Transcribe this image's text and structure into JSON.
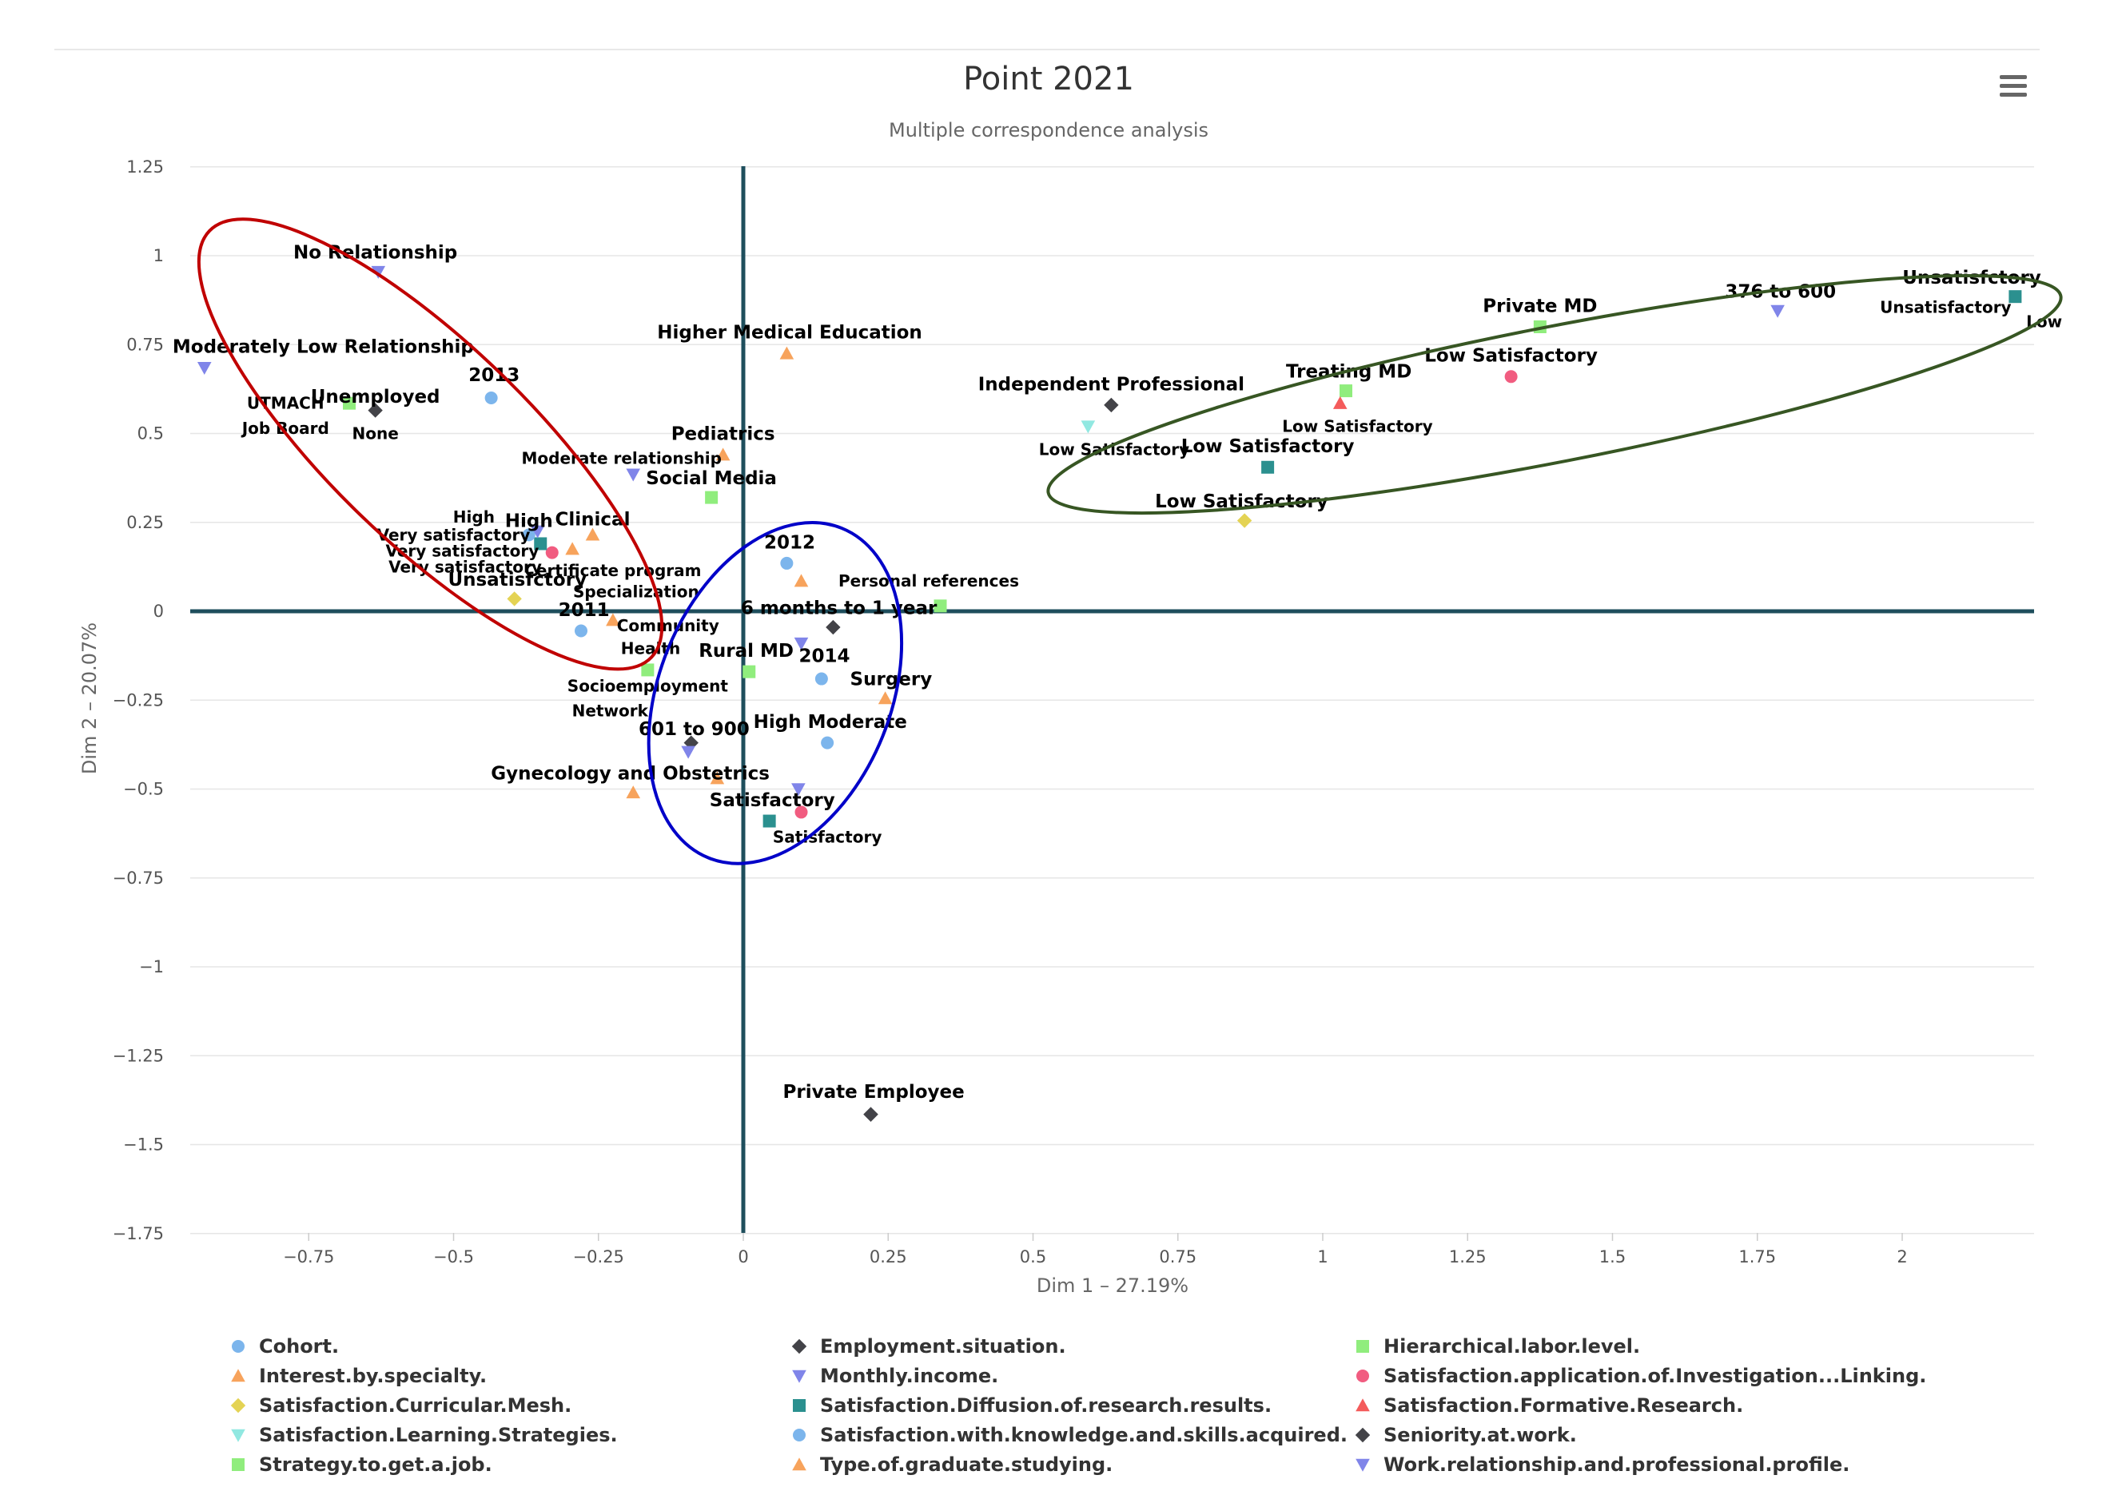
{
  "colors": {
    "cohort": "#7cb5ec",
    "employment": "#434348",
    "hierarchical": "#90ed7d",
    "interest": "#f7a35c",
    "income": "#8085e9",
    "applicationInvestigation": "#f15c80",
    "curricular": "#e4d354",
    "diffusion": "#2b908f",
    "formative": "#f45b5b",
    "learning": "#91e8e1",
    "zeroLine": "#1e4e5c",
    "redEllipse": "#c00000",
    "blueEllipse": "#0000c8",
    "greenEllipse": "#375623"
  },
  "menu": {
    "icon": "hamburger-menu-icon"
  },
  "chart_data": {
    "type": "scatter",
    "title": "Point 2021",
    "subtitle": "Multiple correspondence analysis",
    "xlabel": "Dim 1 – 27.19%",
    "ylabel": "Dim 2 – 20.07%",
    "xlim": [
      -0.95,
      2.25
    ],
    "ylim": [
      -1.75,
      1.25
    ],
    "xticks": [
      {
        "v": -0.75,
        "label": "−0.75"
      },
      {
        "v": -0.5,
        "label": "−0.5"
      },
      {
        "v": -0.25,
        "label": "−0.25"
      },
      {
        "v": 0,
        "label": "0"
      },
      {
        "v": 0.25,
        "label": "0.25"
      },
      {
        "v": 0.5,
        "label": "0.5"
      },
      {
        "v": 0.75,
        "label": "0.75"
      },
      {
        "v": 1,
        "label": "1"
      },
      {
        "v": 1.25,
        "label": "1.25"
      },
      {
        "v": 1.5,
        "label": "1.5"
      },
      {
        "v": 1.75,
        "label": "1.75"
      },
      {
        "v": 2,
        "label": "2"
      }
    ],
    "yticks": [
      {
        "v": 1.25,
        "label": "1.25"
      },
      {
        "v": 1,
        "label": "1"
      },
      {
        "v": 0.75,
        "label": "0.75"
      },
      {
        "v": 0.5,
        "label": "0.5"
      },
      {
        "v": 0.25,
        "label": "0.25"
      },
      {
        "v": 0,
        "label": "0"
      },
      {
        "v": -0.25,
        "label": "−0.25"
      },
      {
        "v": -0.5,
        "label": "−0.5"
      },
      {
        "v": -0.75,
        "label": "−0.75"
      },
      {
        "v": -1,
        "label": "−1"
      },
      {
        "v": -1.25,
        "label": "−1.25"
      },
      {
        "v": -1.5,
        "label": "−1.5"
      },
      {
        "v": -1.75,
        "label": "−1.75"
      }
    ],
    "legend_position": "bottom",
    "series": [
      {
        "name": "Cohort.",
        "marker": "circle",
        "colorKey": "cohort",
        "points": [
          {
            "x": -0.435,
            "y": 0.6
          },
          {
            "x": -0.28,
            "y": -0.055
          },
          {
            "x": 0.075,
            "y": 0.135
          },
          {
            "x": 0.135,
            "y": -0.19
          }
        ]
      },
      {
        "name": "Employment.situation.",
        "marker": "diamond",
        "colorKey": "employment",
        "points": [
          {
            "x": -0.635,
            "y": 0.565
          },
          {
            "x": 0.635,
            "y": 0.58
          },
          {
            "x": 0.155,
            "y": -0.045
          },
          {
            "x": -0.09,
            "y": -0.37
          },
          {
            "x": 0.22,
            "y": -1.415
          }
        ]
      },
      {
        "name": "Hierarchical.labor.level.",
        "marker": "square",
        "colorKey": "hierarchical",
        "points": [
          {
            "x": 1.375,
            "y": 0.8
          },
          {
            "x": 1.04,
            "y": 0.62
          },
          {
            "x": 0.01,
            "y": -0.17
          }
        ]
      },
      {
        "name": "Interest.by.specialty.",
        "marker": "triangle",
        "colorKey": "interest",
        "points": [
          {
            "x": 0.075,
            "y": 0.725
          },
          {
            "x": -0.035,
            "y": 0.44
          },
          {
            "x": -0.26,
            "y": 0.215
          },
          {
            "x": -0.295,
            "y": 0.175
          },
          {
            "x": 0.245,
            "y": -0.245
          },
          {
            "x": -0.19,
            "y": -0.51
          }
        ]
      },
      {
        "name": "Monthly.income.",
        "marker": "triangle-down",
        "colorKey": "income",
        "points": [
          {
            "x": 1.785,
            "y": 0.845
          },
          {
            "x": -0.095,
            "y": -0.395
          },
          {
            "x": 0.095,
            "y": -0.5
          }
        ]
      },
      {
        "name": "Satisfaction.application.of.Investigation...Linking.",
        "marker": "circle",
        "colorKey": "applicationInvestigation",
        "points": [
          {
            "x": 1.325,
            "y": 0.66
          },
          {
            "x": -0.33,
            "y": 0.165
          },
          {
            "x": 0.1,
            "y": -0.565
          }
        ]
      },
      {
        "name": "Satisfaction.Curricular.Mesh.",
        "marker": "diamond",
        "colorKey": "curricular",
        "points": [
          {
            "x": 0.865,
            "y": 0.255
          },
          {
            "x": -0.395,
            "y": 0.035
          }
        ]
      },
      {
        "name": "Satisfaction.Diffusion.of.research.results.",
        "marker": "square",
        "colorKey": "diffusion",
        "points": [
          {
            "x": 2.195,
            "y": 0.885
          },
          {
            "x": 0.905,
            "y": 0.405
          },
          {
            "x": -0.35,
            "y": 0.19
          },
          {
            "x": 0.045,
            "y": -0.59
          }
        ]
      },
      {
        "name": "Satisfaction.Formative.Research.",
        "marker": "triangle",
        "colorKey": "formative",
        "points": [
          {
            "x": 1.03,
            "y": 0.585
          }
        ]
      },
      {
        "name": "Satisfaction.Learning.Strategies.",
        "marker": "triangle-down",
        "colorKey": "learning",
        "points": [
          {
            "x": 0.595,
            "y": 0.52
          }
        ]
      },
      {
        "name": "Satisfaction.with.knowledge.and.skills.acquired.",
        "marker": "circle",
        "colorKey": "cohort",
        "points": [
          {
            "x": -0.37,
            "y": 0.215
          },
          {
            "x": 0.145,
            "y": -0.37
          }
        ]
      },
      {
        "name": "Seniority.at.work.",
        "marker": "diamond",
        "colorKey": "employment",
        "points": [
          {
            "x": 0.22,
            "y": -1.415
          }
        ]
      },
      {
        "name": "Strategy.to.get.a.job.",
        "marker": "square",
        "colorKey": "hierarchical",
        "points": [
          {
            "x": -0.68,
            "y": 0.585
          },
          {
            "x": -0.055,
            "y": 0.32
          },
          {
            "x": 0.34,
            "y": 0.015
          },
          {
            "x": -0.165,
            "y": -0.165
          }
        ]
      },
      {
        "name": "Type.of.graduate.studying.",
        "marker": "triangle",
        "colorKey": "interest",
        "points": [
          {
            "x": 0.1,
            "y": 0.085
          },
          {
            "x": -0.225,
            "y": -0.025
          },
          {
            "x": -0.045,
            "y": -0.47
          }
        ]
      },
      {
        "name": "Work.relationship.and.professional.profile.",
        "marker": "triangle-down",
        "colorKey": "income",
        "points": [
          {
            "x": -0.63,
            "y": 0.955
          },
          {
            "x": -0.93,
            "y": 0.685
          },
          {
            "x": -0.19,
            "y": 0.385
          },
          {
            "x": -0.355,
            "y": 0.225
          },
          {
            "x": 0.1,
            "y": -0.09
          }
        ]
      }
    ],
    "annotations": [
      {
        "text": "No Relationship",
        "x": -0.635,
        "y": 1.01,
        "size": "lg"
      },
      {
        "text": "Moderately Low Relationship",
        "x": -0.725,
        "y": 0.745,
        "size": "lg"
      },
      {
        "text": "2013",
        "x": -0.43,
        "y": 0.665,
        "size": "lg"
      },
      {
        "text": "Unemployed",
        "x": -0.635,
        "y": 0.605,
        "size": "lg"
      },
      {
        "text": "UTMACH",
        "x": -0.79,
        "y": 0.585,
        "size": "md"
      },
      {
        "text": "Job Board",
        "x": -0.79,
        "y": 0.515,
        "size": "md"
      },
      {
        "text": "None",
        "x": -0.635,
        "y": 0.5,
        "size": "md"
      },
      {
        "text": "Higher Medical Education",
        "x": 0.08,
        "y": 0.785,
        "size": "lg"
      },
      {
        "text": "Pediatrics",
        "x": -0.035,
        "y": 0.5,
        "size": "lg"
      },
      {
        "text": "Moderate relationship",
        "x": -0.21,
        "y": 0.43,
        "size": "md"
      },
      {
        "text": "Social Media",
        "x": -0.055,
        "y": 0.375,
        "size": "lg"
      },
      {
        "text": "High",
        "x": -0.465,
        "y": 0.265,
        "size": "md"
      },
      {
        "text": "High",
        "x": -0.37,
        "y": 0.255,
        "size": "lg"
      },
      {
        "text": "Clinical",
        "x": -0.26,
        "y": 0.26,
        "size": "lg"
      },
      {
        "text": "Very satisfactory",
        "x": -0.5,
        "y": 0.215,
        "size": "md"
      },
      {
        "text": "Very satisfactory",
        "x": -0.485,
        "y": 0.17,
        "size": "md"
      },
      {
        "text": "Very satisfactory",
        "x": -0.48,
        "y": 0.125,
        "size": "md"
      },
      {
        "text": "Certificate program",
        "x": -0.225,
        "y": 0.115,
        "size": "md"
      },
      {
        "text": "Unsatisfctory",
        "x": -0.39,
        "y": 0.09,
        "size": "lg"
      },
      {
        "text": "Specialization",
        "x": -0.185,
        "y": 0.055,
        "size": "md"
      },
      {
        "text": "2011",
        "x": -0.275,
        "y": 0.005,
        "size": "lg"
      },
      {
        "text": "2012",
        "x": 0.08,
        "y": 0.195,
        "size": "lg"
      },
      {
        "text": "Personal references",
        "x": 0.32,
        "y": 0.085,
        "size": "md"
      },
      {
        "text": "6 months to 1 year",
        "x": 0.165,
        "y": 0.01,
        "size": "lg"
      },
      {
        "text": "Community",
        "x": -0.13,
        "y": -0.04,
        "size": "md"
      },
      {
        "text": "Health",
        "x": -0.16,
        "y": -0.105,
        "size": "md"
      },
      {
        "text": "Rural MD",
        "x": 0.005,
        "y": -0.11,
        "size": "lg"
      },
      {
        "text": "2014",
        "x": 0.14,
        "y": -0.125,
        "size": "lg"
      },
      {
        "text": "Surgery",
        "x": 0.255,
        "y": -0.19,
        "size": "lg"
      },
      {
        "text": "Socioemployment",
        "x": -0.165,
        "y": -0.21,
        "size": "md"
      },
      {
        "text": "Network",
        "x": -0.23,
        "y": -0.28,
        "size": "md"
      },
      {
        "text": "601 to 900",
        "x": -0.085,
        "y": -0.33,
        "size": "lg"
      },
      {
        "text": "High Moderate",
        "x": 0.15,
        "y": -0.31,
        "size": "lg"
      },
      {
        "text": "Gynecology and Obstetrics",
        "x": -0.195,
        "y": -0.455,
        "size": "lg"
      },
      {
        "text": "Satisfactory",
        "x": 0.05,
        "y": -0.53,
        "size": "lg"
      },
      {
        "text": "Satisfactory",
        "x": 0.145,
        "y": -0.635,
        "size": "md"
      },
      {
        "text": "Private Employee",
        "x": 0.225,
        "y": -1.35,
        "size": "lg"
      },
      {
        "text": "Independent Professional",
        "x": 0.635,
        "y": 0.64,
        "size": "lg"
      },
      {
        "text": "Treating MD",
        "x": 1.045,
        "y": 0.675,
        "size": "lg"
      },
      {
        "text": "Private MD",
        "x": 1.375,
        "y": 0.86,
        "size": "lg"
      },
      {
        "text": "Low Satisfactory",
        "x": 1.325,
        "y": 0.72,
        "size": "lg"
      },
      {
        "text": "376 to 600",
        "x": 1.79,
        "y": 0.9,
        "size": "lg"
      },
      {
        "text": "Unsatisfctory",
        "x": 2.12,
        "y": 0.94,
        "size": "lg"
      },
      {
        "text": "Unsatisfactory",
        "x": 2.075,
        "y": 0.855,
        "size": "md"
      },
      {
        "text": "Low",
        "x": 2.245,
        "y": 0.815,
        "size": "md"
      },
      {
        "text": "Low Satisfactory",
        "x": 1.06,
        "y": 0.52,
        "size": "md"
      },
      {
        "text": "Low Satisfactory",
        "x": 0.64,
        "y": 0.455,
        "size": "md"
      },
      {
        "text": "Low Satisfactory",
        "x": 0.905,
        "y": 0.465,
        "size": "lg"
      },
      {
        "text": "Low Satisfactory",
        "x": 0.86,
        "y": 0.31,
        "size": "lg"
      }
    ],
    "legend": [
      {
        "label": "Cohort.",
        "marker": "circle",
        "colorKey": "cohort"
      },
      {
        "label": "Employment.situation.",
        "marker": "diamond",
        "colorKey": "employment"
      },
      {
        "label": "Hierarchical.labor.level.",
        "marker": "square",
        "colorKey": "hierarchical"
      },
      {
        "label": "Interest.by.specialty.",
        "marker": "triangle",
        "colorKey": "interest"
      },
      {
        "label": "Monthly.income.",
        "marker": "triangle-down",
        "colorKey": "income"
      },
      {
        "label": "Satisfaction.application.of.Investigation...Linking.",
        "marker": "circle",
        "colorKey": "applicationInvestigation"
      },
      {
        "label": "Satisfaction.Curricular.Mesh.",
        "marker": "diamond",
        "colorKey": "curricular"
      },
      {
        "label": "Satisfaction.Diffusion.of.research.results.",
        "marker": "square",
        "colorKey": "diffusion"
      },
      {
        "label": "Satisfaction.Formative.Research.",
        "marker": "triangle",
        "colorKey": "formative"
      },
      {
        "label": "Satisfaction.Learning.Strategies.",
        "marker": "triangle-down",
        "colorKey": "learning"
      },
      {
        "label": "Satisfaction.with.knowledge.and.skills.acquired.",
        "marker": "circle",
        "colorKey": "cohort"
      },
      {
        "label": "Seniority.at.work.",
        "marker": "diamond",
        "colorKey": "employment"
      },
      {
        "label": "Strategy.to.get.a.job.",
        "marker": "square",
        "colorKey": "hierarchical"
      },
      {
        "label": "Type.of.graduate.studying.",
        "marker": "triangle",
        "colorKey": "interest"
      },
      {
        "label": "Work.relationship.and.professional.profile.",
        "marker": "triangle-down",
        "colorKey": "income"
      }
    ],
    "highlight_regions": [
      {
        "name": "red-cluster-ellipse",
        "colorKey": "redEllipse",
        "cx": -0.54,
        "cy": 0.47,
        "rx": 0.53,
        "ry": 0.28,
        "angle": 44
      },
      {
        "name": "blue-cluster-ellipse",
        "colorKey": "blueEllipse",
        "cx": 0.055,
        "cy": -0.23,
        "rx": 0.2,
        "ry": 0.5,
        "angle": 22
      },
      {
        "name": "green-cluster-ellipse",
        "colorKey": "greenEllipse",
        "cx": 1.4,
        "cy": 0.61,
        "rx": 0.89,
        "ry": 0.19,
        "angle": -11
      }
    ]
  }
}
